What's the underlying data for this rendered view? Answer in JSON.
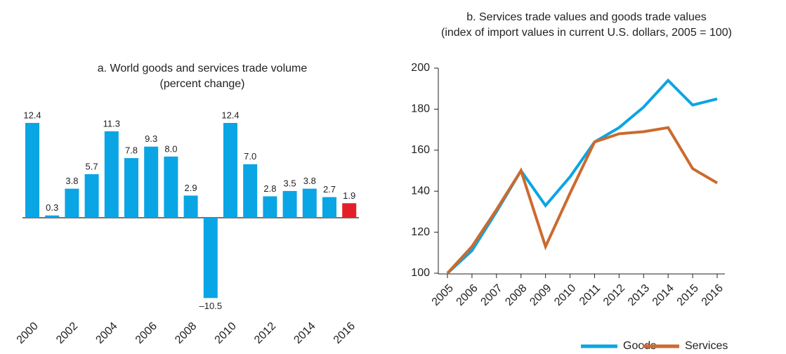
{
  "chart_data": [
    {
      "type": "bar",
      "title": "a. World goods and services trade volume",
      "subtitle": "(percent change)",
      "categories": [
        "2000",
        null,
        "2002",
        null,
        "2004",
        null,
        "2006",
        null,
        "2008",
        null,
        "2010",
        null,
        "2012",
        null,
        "2014",
        null,
        "2016"
      ],
      "values": [
        12.4,
        0.3,
        3.8,
        5.7,
        11.3,
        7.8,
        9.3,
        8.0,
        2.9,
        -10.5,
        12.4,
        7.0,
        2.8,
        3.5,
        3.8,
        2.7,
        1.9
      ],
      "value_labels": [
        "12.4",
        "0.3",
        "3.8",
        "5.7",
        "11.3",
        "7.8",
        "9.3",
        "8.0",
        "2.9",
        "–10.5",
        "12.4",
        "7.0",
        "2.8",
        "3.5",
        "3.8",
        "2.7",
        "1.9"
      ],
      "colors": [
        "#0aa5e4",
        "#0aa5e4",
        "#0aa5e4",
        "#0aa5e4",
        "#0aa5e4",
        "#0aa5e4",
        "#0aa5e4",
        "#0aa5e4",
        "#0aa5e4",
        "#0aa5e4",
        "#0aa5e4",
        "#0aa5e4",
        "#0aa5e4",
        "#0aa5e4",
        "#0aa5e4",
        "#0aa5e4",
        "#e3202a"
      ]
    },
    {
      "type": "line",
      "title": "b. Services trade values and goods trade values",
      "subtitle": "(index of import values in current U.S. dollars, 2005 = 100)",
      "categories": [
        "2005",
        "2006",
        "2007",
        "2008",
        "2009",
        "2010",
        "2011",
        "2012",
        "2013",
        "2014",
        "2015",
        "2016"
      ],
      "series": [
        {
          "name": "Goods",
          "color": "#0aa5e4",
          "values": [
            100,
            111,
            130,
            150,
            133,
            147,
            164,
            171,
            181,
            194,
            182,
            185
          ]
        },
        {
          "name": "Services",
          "color": "#cc6a2c",
          "values": [
            100,
            113,
            131,
            150,
            113,
            139,
            164,
            168,
            169,
            171,
            151,
            144
          ]
        }
      ],
      "ylim": [
        100,
        200
      ],
      "yticks": [
        100,
        120,
        140,
        160,
        180,
        200
      ],
      "legend": "bottom"
    }
  ]
}
